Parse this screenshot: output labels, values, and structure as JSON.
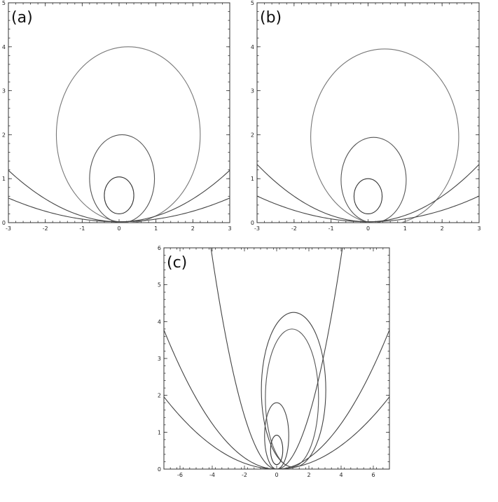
{
  "chart_data": [
    {
      "type": "line",
      "panel_label": "(a)",
      "xlim": [
        -3,
        3
      ],
      "ylim": [
        0,
        5
      ],
      "xticks": [
        "-3",
        "-2",
        "-1",
        "0",
        "1",
        "2",
        "3"
      ],
      "yticks": [
        "0",
        "1",
        "2",
        "3",
        "4",
        "5"
      ],
      "xlabel": "",
      "ylabel": "",
      "title": "",
      "series": [
        {
          "kind": "ellipse",
          "cx": 0.25,
          "cy": 2.0,
          "rx": 1.95,
          "ry": 2.0,
          "stroke": "#777777"
        },
        {
          "kind": "ellipse",
          "cx": 0.08,
          "cy": 1.0,
          "rx": 0.88,
          "ry": 1.0,
          "stroke": "#555555"
        },
        {
          "kind": "ellipse",
          "cx": 0.0,
          "cy": 0.62,
          "rx": 0.4,
          "ry": 0.42,
          "stroke": "#333333"
        },
        {
          "kind": "parabola",
          "x0": 0,
          "y0": 0.02,
          "a": 0.13,
          "stroke": "#444444"
        },
        {
          "kind": "parabola",
          "x0": 0,
          "y0": 0.02,
          "a": 0.06,
          "stroke": "#444444"
        }
      ]
    },
    {
      "type": "line",
      "panel_label": "(b)",
      "xlim": [
        -3,
        3
      ],
      "ylim": [
        0,
        5
      ],
      "xticks": [
        "-3",
        "-2",
        "-1",
        "0",
        "1",
        "2",
        "3"
      ],
      "yticks": [
        "0",
        "1",
        "2",
        "3",
        "4",
        "5"
      ],
      "xlabel": "",
      "ylabel": "",
      "title": "",
      "series": [
        {
          "kind": "ellipse",
          "cx": 0.45,
          "cy": 1.95,
          "rx": 2.0,
          "ry": 2.0,
          "stroke": "#777777"
        },
        {
          "kind": "ellipse",
          "cx": 0.15,
          "cy": 0.97,
          "rx": 0.88,
          "ry": 0.97,
          "stroke": "#555555"
        },
        {
          "kind": "ellipse",
          "cx": 0.0,
          "cy": 0.6,
          "rx": 0.38,
          "ry": 0.4,
          "stroke": "#333333"
        },
        {
          "kind": "parabola",
          "x0": 0,
          "y0": 0.02,
          "a": 0.145,
          "stroke": "#444444"
        },
        {
          "kind": "parabola",
          "x0": 0,
          "y0": 0.02,
          "a": 0.065,
          "stroke": "#444444"
        }
      ]
    },
    {
      "type": "line",
      "panel_label": "(c)",
      "xlim": [
        -7,
        7
      ],
      "ylim": [
        0,
        6
      ],
      "xticks": [
        "-6",
        "-4",
        "-2",
        "0",
        "2",
        "4",
        "6"
      ],
      "yticks": [
        "0",
        "1",
        "2",
        "3",
        "4",
        "5",
        "6"
      ],
      "xlabel": "",
      "ylabel": "",
      "title": "",
      "series": [
        {
          "kind": "ellipse",
          "cx": 1.05,
          "cy": 2.15,
          "rx": 2.0,
          "ry": 2.1,
          "stroke": "#444444"
        },
        {
          "kind": "ellipse",
          "cx": 0.95,
          "cy": 1.93,
          "rx": 1.65,
          "ry": 1.87,
          "stroke": "#555555"
        },
        {
          "kind": "ellipse",
          "cx": 0.0,
          "cy": 0.9,
          "rx": 0.75,
          "ry": 0.9,
          "stroke": "#444444"
        },
        {
          "kind": "ellipse",
          "cx": 0.0,
          "cy": 0.52,
          "rx": 0.38,
          "ry": 0.4,
          "stroke": "#333333"
        },
        {
          "kind": "parabola",
          "x0": 0,
          "y0": 0.0,
          "a": 0.36,
          "stroke": "#444444"
        },
        {
          "kind": "parabola",
          "x0": 0,
          "y0": 0.0,
          "a": 0.077,
          "stroke": "#444444"
        },
        {
          "kind": "parabola",
          "x0": 0,
          "y0": 0.0,
          "a": 0.04,
          "stroke": "#444444"
        }
      ]
    }
  ]
}
